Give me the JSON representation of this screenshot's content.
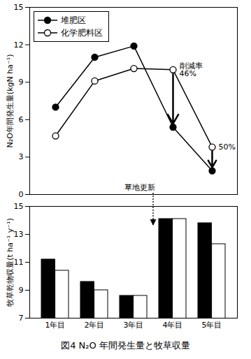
{
  "chart_data": [
    {
      "type": "line",
      "y_label": "N₂O年間発生量(kgN ha⁻¹)",
      "categories": [
        "1年目",
        "2年目",
        "3年目",
        "4年目",
        "5年目"
      ],
      "series": [
        {
          "name": "堆肥区",
          "color": "#000000",
          "marker": "filled_circle",
          "values": [
            7.0,
            11.0,
            11.9,
            5.4,
            1.9
          ]
        },
        {
          "name": "化学肥料区",
          "color": "#000000",
          "marker": "open_circle",
          "values": [
            4.7,
            9.1,
            10.1,
            10.0,
            3.8
          ]
        }
      ],
      "ylim": [
        0,
        15
      ],
      "yticks": [
        0,
        3,
        6,
        9,
        12,
        15
      ],
      "grid": false,
      "legend": "top-left",
      "tick_labels": "y",
      "annotations": [
        {
          "text": "削減率\n46%",
          "x": "4年目",
          "from": "化学肥料区",
          "to": "堆肥区"
        },
        {
          "text": "50%",
          "x": "5年目",
          "from": "化学肥料区",
          "to": "堆肥区"
        },
        {
          "text": "草地更新",
          "between": [
            "3年目",
            "4年目"
          ]
        }
      ]
    },
    {
      "type": "bar",
      "y_label": "牧草乾物収量(t ha⁻¹ y⁻¹)",
      "categories": [
        "1年目",
        "2年目",
        "3年目",
        "4年目",
        "5年目"
      ],
      "series": [
        {
          "name": "堆肥区",
          "color": "#000000",
          "values": [
            11.2,
            9.6,
            8.6,
            14.1,
            13.8
          ]
        },
        {
          "name": "化学肥料区",
          "color": "#ffffff",
          "values": [
            10.4,
            9.0,
            8.6,
            14.1,
            12.3
          ]
        }
      ],
      "ylim": [
        7,
        15
      ],
      "yticks": [
        7,
        9,
        11,
        13,
        15
      ],
      "grid": false
    }
  ],
  "caption": "図4 N₂O 年間発生量と牧草収量"
}
